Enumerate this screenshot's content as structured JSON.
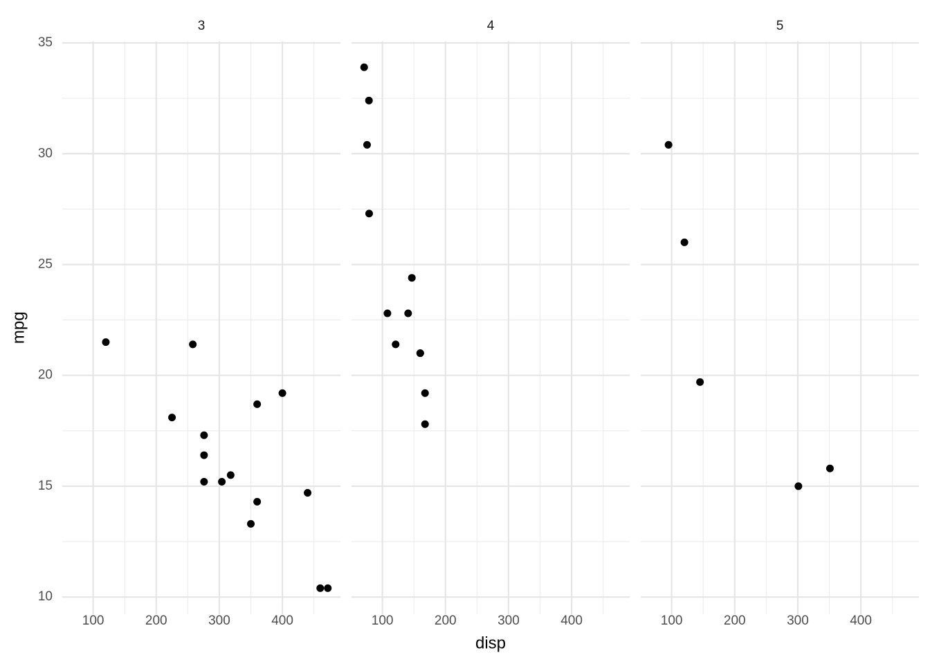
{
  "chart_data": [
    {
      "type": "scatter",
      "title": "3",
      "ylabel": "mpg",
      "x": [
        258,
        360,
        225,
        360,
        275.8,
        275.8,
        275.8,
        472,
        460,
        440,
        120.1,
        318,
        304,
        350,
        400
      ],
      "y": [
        21.4,
        18.7,
        18.1,
        14.3,
        16.4,
        17.3,
        15.2,
        10.4,
        10.4,
        14.7,
        21.5,
        15.5,
        15.2,
        13.3,
        19.2
      ],
      "xlim": [
        51.06,
        492.04
      ],
      "ylim": [
        9.225,
        35.075
      ],
      "xticks": [
        100,
        200,
        300,
        400
      ],
      "yticks": [
        10,
        15,
        20,
        25,
        30,
        35
      ],
      "xminor": [
        150,
        250,
        350,
        450
      ],
      "yminor": [
        12.5,
        17.5,
        22.5,
        27.5,
        32.5
      ],
      "color": "#000000",
      "grid": true
    },
    {
      "type": "scatter",
      "title": "4",
      "xlabel": "disp",
      "x": [
        160,
        160,
        108,
        146.7,
        140.8,
        167.6,
        167.6,
        78.7,
        75.7,
        71.1,
        79,
        121
      ],
      "y": [
        21,
        21,
        22.8,
        24.4,
        22.8,
        19.2,
        17.8,
        32.4,
        30.4,
        33.9,
        27.3,
        21.4
      ],
      "xlim": [
        51.06,
        492.04
      ],
      "ylim": [
        9.225,
        35.075
      ],
      "xticks": [
        100,
        200,
        300,
        400
      ],
      "yticks": [
        10,
        15,
        20,
        25,
        30,
        35
      ],
      "xminor": [
        150,
        250,
        350,
        450
      ],
      "yminor": [
        12.5,
        17.5,
        22.5,
        27.5,
        32.5
      ],
      "color": "#000000",
      "grid": true
    },
    {
      "type": "scatter",
      "title": "5",
      "x": [
        120.3,
        95.1,
        351,
        145,
        301
      ],
      "y": [
        26,
        30.4,
        15.8,
        19.7,
        15
      ],
      "xlim": [
        51.06,
        492.04
      ],
      "ylim": [
        9.225,
        35.075
      ],
      "xticks": [
        100,
        200,
        300,
        400
      ],
      "yticks": [
        10,
        15,
        20,
        25,
        30,
        35
      ],
      "xminor": [
        150,
        250,
        350,
        450
      ],
      "yminor": [
        12.5,
        17.5,
        22.5,
        27.5,
        32.5
      ],
      "color": "#000000",
      "grid": true
    }
  ]
}
